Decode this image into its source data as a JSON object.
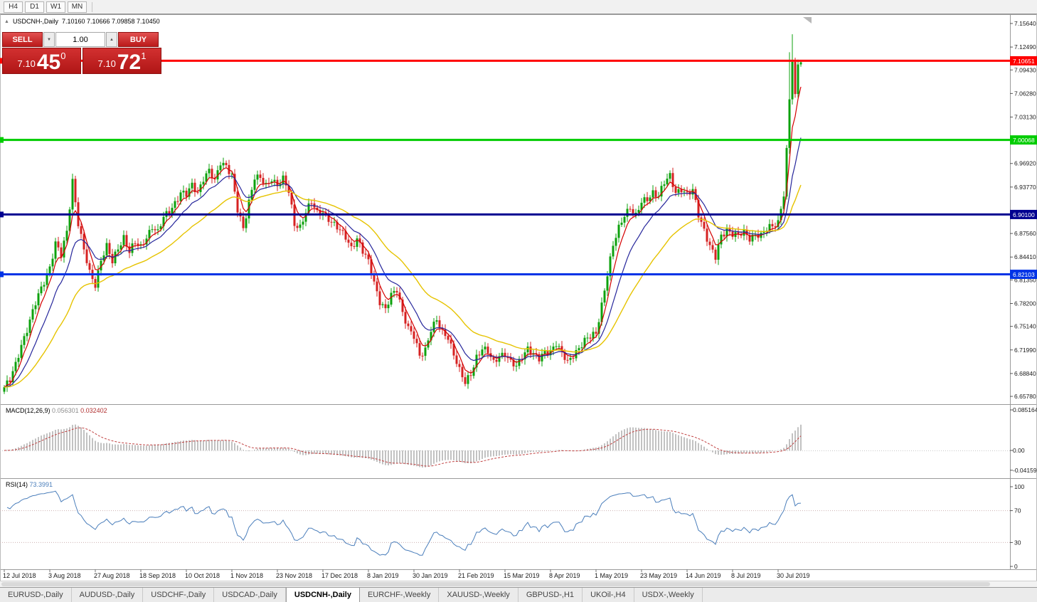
{
  "toolbar": {
    "timeframes": [
      "H4",
      "D1",
      "W1",
      "MN"
    ]
  },
  "chart": {
    "symbol_label": "USDCNH-,Daily",
    "ohlc": "7.10160 7.10666 7.09858 7.10450"
  },
  "icons": {
    "panel_toggle": "▲",
    "volume_down": "▼",
    "volume_up": "▲"
  },
  "trade_panel": {
    "sell_label": "SELL",
    "buy_label": "BUY",
    "volume": "1.00",
    "sell_price_prefix": "7.10",
    "sell_price_main": "45",
    "sell_price_sup": "0",
    "buy_price_prefix": "7.10",
    "buy_price_main": "72",
    "buy_price_sup": "1"
  },
  "price_axis": {
    "ticks": [
      {
        "label": "7.15640",
        "value": 7.1564
      },
      {
        "label": "7.12490",
        "value": 7.1249
      },
      {
        "label": "7.09430",
        "value": 7.0943
      },
      {
        "label": "7.06280",
        "value": 7.0628
      },
      {
        "label": "7.03130",
        "value": 7.0313
      },
      {
        "label": "6.96920",
        "value": 6.9692
      },
      {
        "label": "6.93770",
        "value": 6.9377
      },
      {
        "label": "6.87560",
        "value": 6.8756
      },
      {
        "label": "6.84410",
        "value": 6.8441
      },
      {
        "label": "6.81350",
        "value": 6.8135
      },
      {
        "label": "6.78200",
        "value": 6.782
      },
      {
        "label": "6.75140",
        "value": 6.7514
      },
      {
        "label": "6.71990",
        "value": 6.7199
      },
      {
        "label": "6.68840",
        "value": 6.6884
      },
      {
        "label": "6.65780",
        "value": 6.6578
      }
    ]
  },
  "hlines": [
    {
      "label": "7.10651",
      "value": 7.10651,
      "color": "#FF0000",
      "width": 3
    },
    {
      "label": "7.00068",
      "value": 7.00068,
      "color": "#00CC00",
      "width": 3
    },
    {
      "label": "6.90100",
      "value": 6.901,
      "color": "#000090",
      "width": 3
    },
    {
      "label": "6.82103",
      "value": 6.82103,
      "color": "#0033E6",
      "width": 3
    }
  ],
  "macd": {
    "label": "MACD(12,26,9)",
    "value_main": "0.056301",
    "value_signal": "0.032402",
    "axis": [
      {
        "label": "0.085164",
        "value": 0.085164
      },
      {
        "label": "0.00",
        "value": 0
      },
      {
        "label": "-0.04159",
        "value": -0.04159
      }
    ]
  },
  "rsi": {
    "label": "RSI(14)",
    "value": "73.3991",
    "axis": [
      {
        "label": "100",
        "value": 100
      },
      {
        "label": "70",
        "value": 70
      },
      {
        "label": "30",
        "value": 30
      },
      {
        "label": "0",
        "value": 0
      }
    ],
    "levels": [
      70,
      30
    ]
  },
  "date_axis": [
    "12 Jul 2018",
    "3 Aug 2018",
    "27 Aug 2018",
    "18 Sep 2018",
    "10 Oct 2018",
    "1 Nov 2018",
    "23 Nov 2018",
    "17 Dec 2018",
    "8 Jan 2019",
    "30 Jan 2019",
    "21 Feb 2019",
    "15 Mar 2019",
    "8 Apr 2019",
    "1 May 2019",
    "23 May 2019",
    "14 Jun 2019",
    "8 Jul 2019",
    "30 Jul 2019"
  ],
  "tabs": [
    {
      "label": "EURUSD-,Daily",
      "active": false
    },
    {
      "label": "AUDUSD-,Daily",
      "active": false
    },
    {
      "label": "USDCHF-,Daily",
      "active": false
    },
    {
      "label": "USDCAD-,Daily",
      "active": false
    },
    {
      "label": "USDCNH-,Daily",
      "active": true
    },
    {
      "label": "EURCHF-,Weekly",
      "active": false
    },
    {
      "label": "XAUUSD-,Weekly",
      "active": false
    },
    {
      "label": "GBPUSD-,H1",
      "active": false
    },
    {
      "label": "UKOil-,H4",
      "active": false
    },
    {
      "label": "USDX-,Weekly",
      "active": false
    }
  ],
  "chart_data": {
    "type": "candlestick",
    "symbol": "USDCNH",
    "timeframe": "Daily",
    "price_range": [
      6.6578,
      7.1564
    ],
    "candle_count": 281,
    "first_open": 6.664,
    "last_candle_ohlc": {
      "open": 7.1016,
      "high": 7.10666,
      "low": 7.09858,
      "close": 7.1045
    },
    "colors": {
      "up": "#0DA10D",
      "down": "#D62222"
    },
    "wiggle": [
      0.004,
      0.0025
    ],
    "wiggle_until": 272,
    "close_anchors": [
      [
        0,
        6.67
      ],
      [
        2,
        6.678
      ],
      [
        4,
        6.7
      ],
      [
        6,
        6.728
      ],
      [
        8,
        6.748
      ],
      [
        10,
        6.77
      ],
      [
        12,
        6.792
      ],
      [
        14,
        6.812
      ],
      [
        16,
        6.832
      ],
      [
        18,
        6.862
      ],
      [
        20,
        6.845
      ],
      [
        22,
        6.878
      ],
      [
        24,
        6.948
      ],
      [
        26,
        6.89
      ],
      [
        28,
        6.852
      ],
      [
        30,
        6.822
      ],
      [
        32,
        6.808
      ],
      [
        34,
        6.842
      ],
      [
        36,
        6.858
      ],
      [
        38,
        6.836
      ],
      [
        40,
        6.856
      ],
      [
        42,
        6.872
      ],
      [
        44,
        6.852
      ],
      [
        46,
        6.862
      ],
      [
        48,
        6.856
      ],
      [
        50,
        6.872
      ],
      [
        52,
        6.886
      ],
      [
        54,
        6.876
      ],
      [
        56,
        6.896
      ],
      [
        58,
        6.906
      ],
      [
        60,
        6.918
      ],
      [
        62,
        6.93
      ],
      [
        64,
        6.926
      ],
      [
        66,
        6.94
      ],
      [
        68,
        6.932
      ],
      [
        70,
        6.95
      ],
      [
        72,
        6.958
      ],
      [
        74,
        6.944
      ],
      [
        76,
        6.972
      ],
      [
        78,
        6.968
      ],
      [
        80,
        6.952
      ],
      [
        82,
        6.905
      ],
      [
        84,
        6.882
      ],
      [
        86,
        6.92
      ],
      [
        88,
        6.952
      ],
      [
        90,
        6.948
      ],
      [
        92,
        6.938
      ],
      [
        94,
        6.95
      ],
      [
        96,
        6.942
      ],
      [
        98,
        6.948
      ],
      [
        100,
        6.93
      ],
      [
        102,
        6.888
      ],
      [
        104,
        6.886
      ],
      [
        106,
        6.905
      ],
      [
        108,
        6.916
      ],
      [
        110,
        6.902
      ],
      [
        112,
        6.906
      ],
      [
        114,
        6.896
      ],
      [
        116,
        6.886
      ],
      [
        118,
        6.878
      ],
      [
        120,
        6.872
      ],
      [
        122,
        6.858
      ],
      [
        124,
        6.868
      ],
      [
        126,
        6.85
      ],
      [
        128,
        6.838
      ],
      [
        130,
        6.812
      ],
      [
        132,
        6.785
      ],
      [
        134,
        6.772
      ],
      [
        136,
        6.792
      ],
      [
        138,
        6.802
      ],
      [
        140,
        6.772
      ],
      [
        142,
        6.748
      ],
      [
        144,
        6.736
      ],
      [
        146,
        6.712
      ],
      [
        148,
        6.722
      ],
      [
        150,
        6.748
      ],
      [
        152,
        6.758
      ],
      [
        154,
        6.742
      ],
      [
        156,
        6.738
      ],
      [
        158,
        6.716
      ],
      [
        160,
        6.692
      ],
      [
        162,
        6.674
      ],
      [
        164,
        6.688
      ],
      [
        166,
        6.712
      ],
      [
        168,
        6.722
      ],
      [
        170,
        6.716
      ],
      [
        172,
        6.702
      ],
      [
        174,
        6.714
      ],
      [
        176,
        6.716
      ],
      [
        178,
        6.702
      ],
      [
        180,
        6.696
      ],
      [
        182,
        6.712
      ],
      [
        184,
        6.724
      ],
      [
        186,
        6.714
      ],
      [
        188,
        6.706
      ],
      [
        190,
        6.716
      ],
      [
        192,
        6.72
      ],
      [
        194,
        6.73
      ],
      [
        196,
        6.714
      ],
      [
        198,
        6.702
      ],
      [
        200,
        6.714
      ],
      [
        202,
        6.724
      ],
      [
        204,
        6.732
      ],
      [
        206,
        6.736
      ],
      [
        208,
        6.742
      ],
      [
        210,
        6.782
      ],
      [
        212,
        6.822
      ],
      [
        214,
        6.858
      ],
      [
        216,
        6.882
      ],
      [
        218,
        6.902
      ],
      [
        220,
        6.912
      ],
      [
        222,
        6.898
      ],
      [
        224,
        6.916
      ],
      [
        226,
        6.922
      ],
      [
        228,
        6.932
      ],
      [
        230,
        6.926
      ],
      [
        232,
        6.942
      ],
      [
        234,
        6.952
      ],
      [
        236,
        6.932
      ],
      [
        238,
        6.936
      ],
      [
        240,
        6.926
      ],
      [
        242,
        6.932
      ],
      [
        244,
        6.902
      ],
      [
        246,
        6.882
      ],
      [
        248,
        6.858
      ],
      [
        250,
        6.842
      ],
      [
        252,
        6.872
      ],
      [
        254,
        6.882
      ],
      [
        256,
        6.876
      ],
      [
        258,
        6.872
      ],
      [
        260,
        6.876
      ],
      [
        262,
        6.87
      ],
      [
        264,
        6.876
      ],
      [
        266,
        6.872
      ],
      [
        268,
        6.88
      ],
      [
        270,
        6.886
      ],
      [
        272,
        6.892
      ],
      [
        274,
        6.925
      ],
      [
        276,
        7.055
      ],
      [
        277,
        7.105
      ],
      [
        278,
        7.062
      ],
      [
        279,
        7.1016
      ],
      [
        280,
        7.1045
      ]
    ],
    "wick_overrides": [
      [
        276,
        7.118,
        6.982
      ],
      [
        277,
        7.142,
        7.048
      ],
      [
        280,
        7.10666,
        7.09858
      ]
    ],
    "moving_averages": [
      {
        "name": "fast",
        "period": 5,
        "color": "#D40000",
        "width": 1.2
      },
      {
        "name": "mid",
        "period": 13,
        "color": "#26269B",
        "width": 1.2
      },
      {
        "name": "slow",
        "period": 34,
        "color": "#E6C300",
        "width": 1.4
      }
    ],
    "indicators": [
      {
        "name": "MACD",
        "params": [
          12,
          26,
          9
        ],
        "current": [
          0.056301,
          0.032402
        ]
      },
      {
        "name": "RSI",
        "params": [
          14
        ],
        "current": 73.3991
      }
    ]
  }
}
